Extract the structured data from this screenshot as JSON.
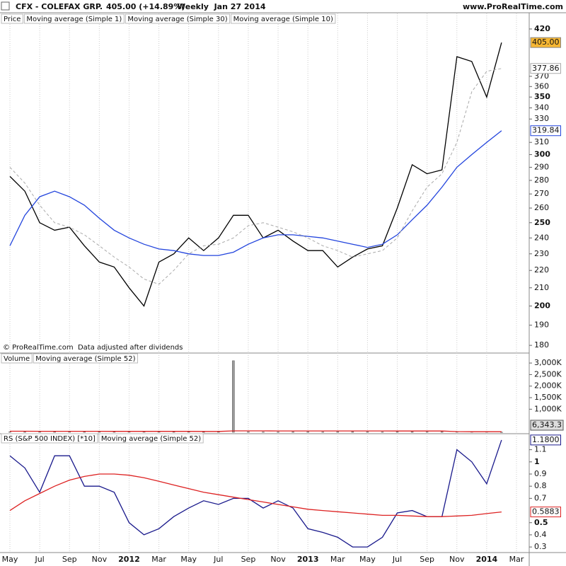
{
  "chart_data": [
    {
      "type": "line",
      "title": "CFX - COLEFAX GRP.",
      "subtitle": "405.00 (+14.89%)",
      "period": "Weekly  Jan 27 2014",
      "source": "www.ProRealTime.com",
      "legend_label": "Price",
      "note": "© ProRealTime.com  Data adjusted after dividends",
      "categories": [
        "May",
        null,
        "Jul",
        null,
        "Sep",
        null,
        "Nov",
        null,
        "2012",
        null,
        "Mar",
        null,
        "May",
        null,
        "Jul",
        null,
        "Sep",
        null,
        "Nov",
        null,
        "2013",
        null,
        "Mar",
        null,
        "May",
        null,
        "Jul",
        null,
        "Sep",
        null,
        "Nov",
        null,
        "2014",
        null,
        "Mar"
      ],
      "log_scale": true,
      "ylim": [
        177,
        428
      ],
      "yticks": [
        180,
        190,
        200,
        210,
        220,
        230,
        240,
        250,
        260,
        270,
        280,
        290,
        300,
        310,
        330,
        340,
        350,
        360,
        370,
        420
      ],
      "series": [
        {
          "name": "Moving average (Simple 1)",
          "color": "#000000",
          "last_label": "405.00",
          "label_bg": "#f7b733",
          "values": [
            283,
            272,
            250,
            245,
            247,
            235,
            225,
            222,
            210,
            200,
            225,
            230,
            240,
            232,
            240,
            255,
            255,
            240,
            245,
            238,
            232,
            232,
            222,
            228,
            233,
            235,
            260,
            292,
            285,
            288,
            390,
            385,
            350,
            405,
            null
          ]
        },
        {
          "name": "Moving average (Simple 30)",
          "color": "#2244dd",
          "last_label": "319.84",
          "label_bg": "#ffffff",
          "values": [
            235,
            255,
            268,
            272,
            268,
            262,
            253,
            245,
            240,
            236,
            233,
            232,
            230,
            229,
            229,
            231,
            236,
            240,
            242,
            242,
            241,
            240,
            238,
            236,
            234,
            236,
            242,
            252,
            262,
            275,
            290,
            300,
            310,
            319.84,
            null
          ]
        },
        {
          "name": "Moving average (Simple 10)",
          "color": "#aaaaaa",
          "dash": true,
          "last_label": "377.86",
          "label_bg": "#ffffff",
          "values": [
            290,
            278,
            262,
            250,
            247,
            242,
            235,
            228,
            222,
            215,
            212,
            220,
            230,
            235,
            236,
            240,
            248,
            250,
            247,
            244,
            240,
            235,
            232,
            228,
            230,
            232,
            240,
            258,
            275,
            285,
            310,
            355,
            375,
            377.86,
            null
          ]
        }
      ]
    },
    {
      "type": "bar",
      "legend_label": "Volume",
      "ylim": [
        0,
        3310000
      ],
      "yticks": [
        {
          "value": 1000000,
          "label": "1,000K"
        },
        {
          "value": 1500000,
          "label": "1,500K"
        },
        {
          "value": 2000000,
          "label": "2,000K"
        },
        {
          "value": 2500000,
          "label": "2,500K"
        },
        {
          "value": 3000000,
          "label": "3,000K"
        }
      ],
      "color": "#999999",
      "last_label": "6,343.3",
      "values": [
        20000,
        15000,
        18000,
        25000,
        30000,
        20000,
        25000,
        15000,
        20000,
        35000,
        20000,
        15000,
        18000,
        12000,
        15000,
        3100000,
        20000,
        15000,
        12000,
        18000,
        20000,
        15000,
        25000,
        30000,
        20000,
        15000,
        20000,
        25000,
        15000,
        30000,
        35000,
        25000,
        20000,
        6343.3,
        null
      ],
      "series": [
        {
          "name": "Moving average (Simple 52)",
          "color": "#dd2222",
          "values": [
            45000,
            45000,
            44000,
            44000,
            43000,
            42000,
            42000,
            41000,
            40000,
            40000,
            40000,
            39000,
            39000,
            38000,
            38000,
            60000,
            60000,
            60000,
            59000,
            59000,
            58000,
            58000,
            58000,
            57000,
            57000,
            57000,
            56000,
            56000,
            56000,
            55000,
            30000,
            25000,
            24000,
            23000,
            null
          ]
        }
      ]
    },
    {
      "type": "line",
      "ylim": [
        0.26,
        1.22
      ],
      "yticks": [
        0.3,
        0.4,
        0.5,
        0.7,
        0.8,
        0.9,
        1,
        1.1
      ],
      "series": [
        {
          "name": "RS (S&P 500 INDEX) [*10]",
          "color": "#1a1a8c",
          "last_label": "1.1800",
          "label_bg": "#ffffff",
          "values": [
            1.05,
            0.95,
            0.75,
            1.05,
            1.05,
            0.8,
            0.8,
            0.75,
            0.5,
            0.4,
            0.45,
            0.55,
            0.62,
            0.68,
            0.65,
            0.7,
            0.7,
            0.62,
            0.68,
            0.62,
            0.45,
            0.42,
            0.38,
            0.3,
            0.3,
            0.38,
            0.58,
            0.6,
            0.55,
            0.55,
            1.1,
            1.0,
            0.82,
            1.18,
            null
          ]
        },
        {
          "name": "Moving average (Simple 52)",
          "color": "#dd2222",
          "last_label": "0.5883",
          "label_bg": "#ffffff",
          "values": [
            0.6,
            0.68,
            0.74,
            0.8,
            0.85,
            0.88,
            0.9,
            0.9,
            0.89,
            0.87,
            0.84,
            0.81,
            0.78,
            0.75,
            0.73,
            0.71,
            0.69,
            0.67,
            0.65,
            0.63,
            0.61,
            0.6,
            0.59,
            0.58,
            0.57,
            0.56,
            0.56,
            0.555,
            0.55,
            0.55,
            0.555,
            0.56,
            0.575,
            0.5883,
            null
          ]
        }
      ]
    }
  ]
}
